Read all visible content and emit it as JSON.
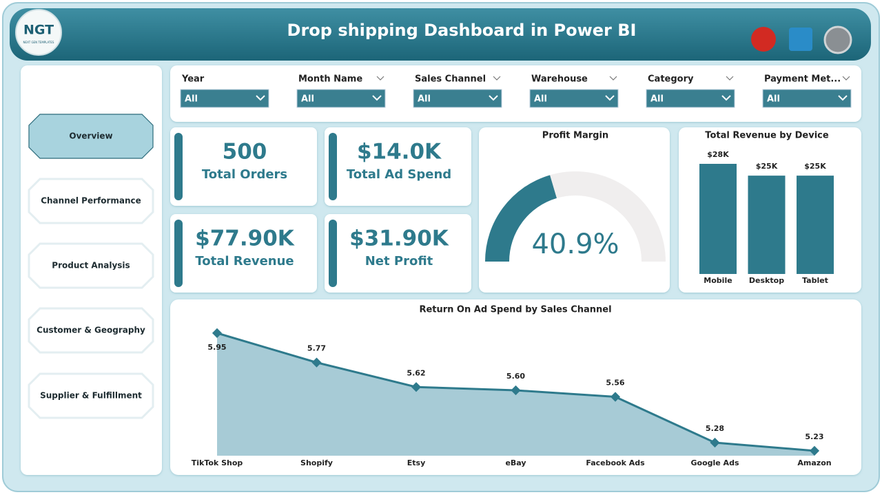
{
  "header": {
    "title": "Drop shipping Dashboard in Power BI",
    "logo": {
      "text": "NGT",
      "subtext": "NEXT GEN TEMPLATES"
    }
  },
  "nav": [
    "Overview",
    "Channel Performance",
    "Product Analysis",
    "Customer & Geography",
    "Supplier & Fulfillment"
  ],
  "filters": [
    {
      "label": "Year",
      "value": "All"
    },
    {
      "label": "Month Name",
      "value": "All"
    },
    {
      "label": "Sales Channel",
      "value": "All"
    },
    {
      "label": "Warehouse",
      "value": "All"
    },
    {
      "label": "Category",
      "value": "All"
    },
    {
      "label": "Payment Met...",
      "value": "All"
    }
  ],
  "kpis": [
    {
      "value": "500",
      "label": "Total Orders"
    },
    {
      "value": "$14.0K",
      "label": "Total Ad Spend"
    },
    {
      "value": "$77.90K",
      "label": "Total Revenue"
    },
    {
      "value": "$31.90K",
      "label": "Net Profit"
    }
  ],
  "chart_data": [
    {
      "type": "gauge",
      "title": "Profit Margin",
      "values": [
        40.9
      ],
      "value_labels": [
        "40.9%"
      ],
      "ylim": [
        0,
        100
      ],
      "color": "#2e7a8c"
    },
    {
      "type": "bar",
      "title": "Total Revenue by Device",
      "categories": [
        "Mobile",
        "Desktop",
        "Tablet"
      ],
      "values": [
        28000,
        25000,
        25000
      ],
      "value_labels": [
        "$28K",
        "$25K",
        "$25K"
      ],
      "ylim": [
        0,
        28000
      ],
      "color": "#2e7a8c"
    },
    {
      "type": "area",
      "title": "Return On Ad Spend by Sales Channel",
      "categories": [
        "TikTok Shop",
        "Shopify",
        "Etsy",
        "eBay",
        "Facebook Ads",
        "Google Ads",
        "Amazon"
      ],
      "values": [
        5.95,
        5.77,
        5.62,
        5.6,
        5.56,
        5.28,
        5.23
      ],
      "value_labels": [
        "5.95",
        "5.77",
        "5.62",
        "5.60",
        "5.56",
        "5.28",
        "5.23"
      ],
      "ylim": [
        5.2,
        6.0
      ],
      "color": "#2e7a8c"
    }
  ]
}
